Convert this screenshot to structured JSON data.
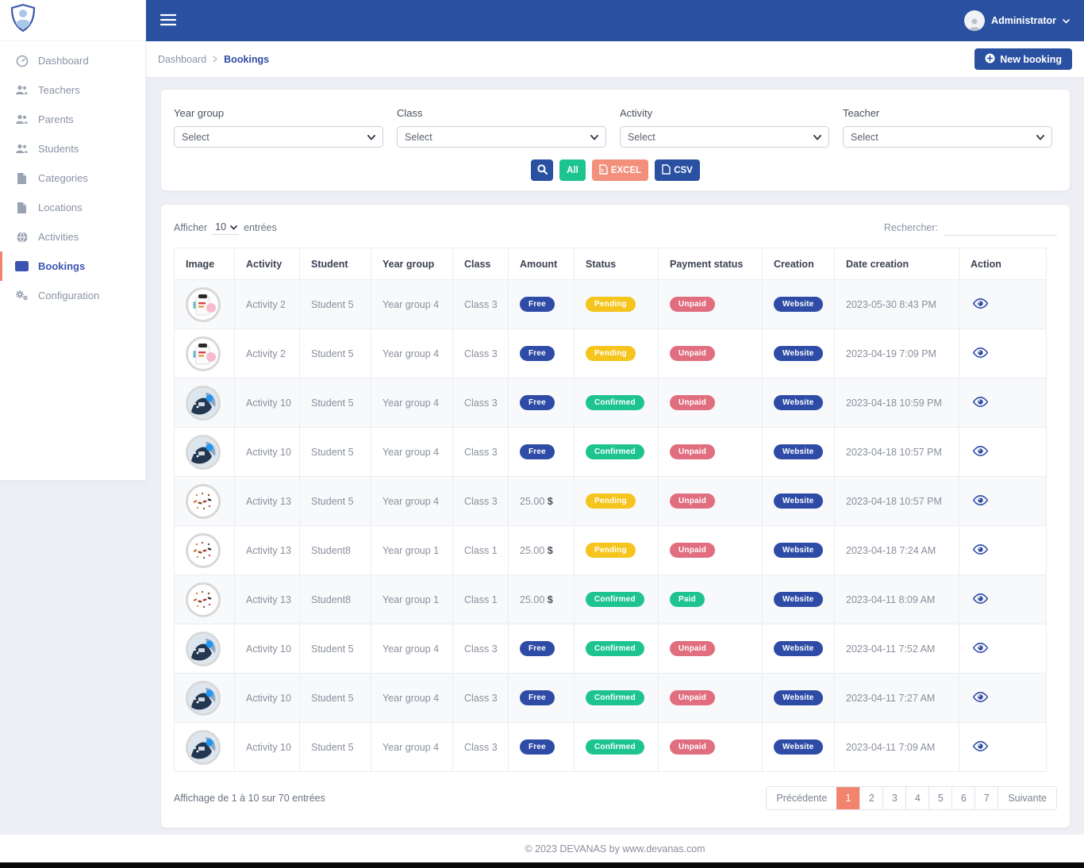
{
  "topbar": {
    "user_name": "Administrator"
  },
  "sidebar": {
    "items": [
      {
        "label": "Dashboard",
        "active": false
      },
      {
        "label": "Teachers",
        "active": false
      },
      {
        "label": "Parents",
        "active": false
      },
      {
        "label": "Students",
        "active": false
      },
      {
        "label": "Categories",
        "active": false
      },
      {
        "label": "Locations",
        "active": false
      },
      {
        "label": "Activities",
        "active": false
      },
      {
        "label": "Bookings",
        "active": true
      },
      {
        "label": "Configuration",
        "active": false
      }
    ]
  },
  "breadcrumb": {
    "root": "Dashboard",
    "current": "Bookings"
  },
  "header": {
    "new_booking_label": "New booking"
  },
  "filters": {
    "fields": [
      {
        "id": "year-group",
        "label": "Year group",
        "value": "Select"
      },
      {
        "id": "class",
        "label": "Class",
        "value": "Select"
      },
      {
        "id": "activity",
        "label": "Activity",
        "value": "Select"
      },
      {
        "id": "teacher",
        "label": "Teacher",
        "value": "Select"
      }
    ],
    "buttons": {
      "all": "All",
      "excel": "EXCEL",
      "csv": "CSV"
    }
  },
  "table": {
    "length_prefix": "Afficher",
    "length_value": "10",
    "length_suffix": "entrées",
    "search_label": "Rechercher:",
    "columns": [
      "Image",
      "Activity",
      "Student",
      "Year group",
      "Class",
      "Amount",
      "Status",
      "Payment status",
      "Creation",
      "Date creation",
      "Action"
    ],
    "rows": [
      {
        "image": "clipboard",
        "activity": "Activity 2",
        "student": "Student 5",
        "year_group": "Year group 4",
        "class": "Class 3",
        "amount": "Free",
        "status": "Pending",
        "payment_status": "Unpaid",
        "creation": "Website",
        "date_creation": "2023-05-30 8:43 PM"
      },
      {
        "image": "clipboard",
        "activity": "Activity 2",
        "student": "Student 5",
        "year_group": "Year group 4",
        "class": "Class 3",
        "amount": "Free",
        "status": "Pending",
        "payment_status": "Unpaid",
        "creation": "Website",
        "date_creation": "2023-04-19 7:09 PM"
      },
      {
        "image": "people",
        "activity": "Activity 10",
        "student": "Student 5",
        "year_group": "Year group 4",
        "class": "Class 3",
        "amount": "Free",
        "status": "Confirmed",
        "payment_status": "Unpaid",
        "creation": "Website",
        "date_creation": "2023-04-18 10:59 PM"
      },
      {
        "image": "people",
        "activity": "Activity 10",
        "student": "Student 5",
        "year_group": "Year group 4",
        "class": "Class 3",
        "amount": "Free",
        "status": "Confirmed",
        "payment_status": "Unpaid",
        "creation": "Website",
        "date_creation": "2023-04-18 10:57 PM"
      },
      {
        "image": "confetti",
        "activity": "Activity 13",
        "student": "Student 5",
        "year_group": "Year group 4",
        "class": "Class 3",
        "amount": "25.00",
        "currency": "$",
        "status": "Pending",
        "payment_status": "Unpaid",
        "creation": "Website",
        "date_creation": "2023-04-18 10:57 PM"
      },
      {
        "image": "confetti",
        "activity": "Activity 13",
        "student": "Student8",
        "year_group": "Year group 1",
        "class": "Class 1",
        "amount": "25.00",
        "currency": "$",
        "status": "Pending",
        "payment_status": "Unpaid",
        "creation": "Website",
        "date_creation": "2023-04-18 7:24 AM"
      },
      {
        "image": "confetti",
        "activity": "Activity 13",
        "student": "Student8",
        "year_group": "Year group 1",
        "class": "Class 1",
        "amount": "25.00",
        "currency": "$",
        "status": "Confirmed",
        "payment_status": "Paid",
        "creation": "Website",
        "date_creation": "2023-04-11 8:09 AM"
      },
      {
        "image": "people",
        "activity": "Activity 10",
        "student": "Student 5",
        "year_group": "Year group 4",
        "class": "Class 3",
        "amount": "Free",
        "status": "Confirmed",
        "payment_status": "Unpaid",
        "creation": "Website",
        "date_creation": "2023-04-11 7:52 AM"
      },
      {
        "image": "people",
        "activity": "Activity 10",
        "student": "Student 5",
        "year_group": "Year group 4",
        "class": "Class 3",
        "amount": "Free",
        "status": "Confirmed",
        "payment_status": "Unpaid",
        "creation": "Website",
        "date_creation": "2023-04-11 7:27 AM"
      },
      {
        "image": "people",
        "activity": "Activity 10",
        "student": "Student 5",
        "year_group": "Year group 4",
        "class": "Class 3",
        "amount": "Free",
        "status": "Confirmed",
        "payment_status": "Unpaid",
        "creation": "Website",
        "date_creation": "2023-04-11 7:09 AM"
      }
    ],
    "info": "Affichage de 1 à 10 sur 70 entrées",
    "pagination": {
      "previous": "Précédente",
      "pages": [
        "1",
        "2",
        "3",
        "4",
        "5",
        "6",
        "7"
      ],
      "active": "1",
      "next": "Suivante"
    }
  },
  "footer": {
    "copyright": "© 2023 DEVANAS by www.devanas.com"
  },
  "colors": {
    "topbar_blue": "#2a51a1",
    "accent_salmon": "#f2846d",
    "badge_blue": "#2e4ba6",
    "badge_yellow": "#f5c51d",
    "badge_green": "#1ec48f",
    "badge_red": "#e06e7f"
  }
}
